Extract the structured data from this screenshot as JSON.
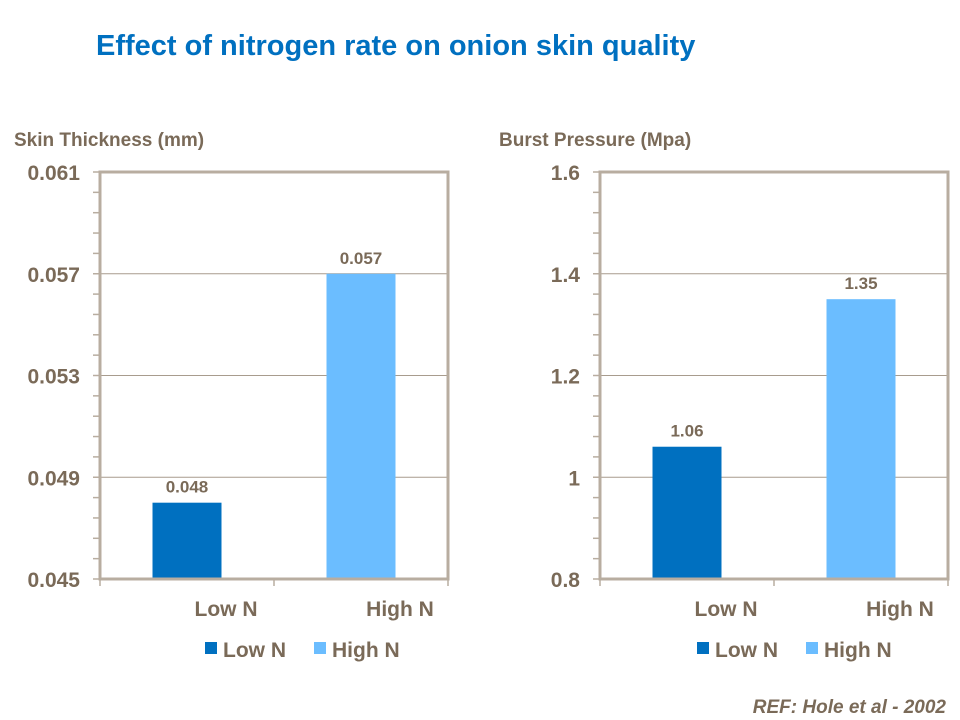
{
  "title": "Effect of nitrogen rate on onion skin quality",
  "reference": "REF: Hole et al -  2002",
  "colors": {
    "low_n": "#0070c0",
    "high_n": "#6bbdff",
    "text": "#7a6a58",
    "axis": "#b8ada0",
    "title": "#0070c0"
  },
  "chart_data": [
    {
      "type": "bar",
      "title": "Skin Thickness (mm)",
      "categories": [
        "Low N",
        "High N"
      ],
      "series": [
        {
          "name": "Low N",
          "values": [
            0.048,
            null
          ]
        },
        {
          "name": "High N",
          "values": [
            null,
            0.057
          ]
        }
      ],
      "data_labels": [
        "0.048",
        "0.057"
      ],
      "ylim": [
        0.045,
        0.061
      ],
      "yticks": [
        "0.045",
        "0.049",
        "0.053",
        "0.057",
        "0.061"
      ],
      "ytick_values": [
        0.045,
        0.049,
        0.053,
        0.057,
        0.061
      ],
      "minor_per_major": 5,
      "grid": true,
      "legend": "bottom"
    },
    {
      "type": "bar",
      "title": "Burst Pressure  (Mpa)",
      "categories": [
        "Low N",
        "High N"
      ],
      "series": [
        {
          "name": "Low N",
          "values": [
            1.06,
            null
          ]
        },
        {
          "name": "High N",
          "values": [
            null,
            1.35
          ]
        }
      ],
      "data_labels": [
        "1.06",
        "1.35"
      ],
      "ylim": [
        0.8,
        1.6
      ],
      "yticks": [
        "0.8",
        "1",
        "1.2",
        "1.4",
        "1.6"
      ],
      "ytick_values": [
        0.8,
        1.0,
        1.2,
        1.4,
        1.6
      ],
      "minor_per_major": 5,
      "grid": true,
      "legend": "bottom"
    }
  ]
}
